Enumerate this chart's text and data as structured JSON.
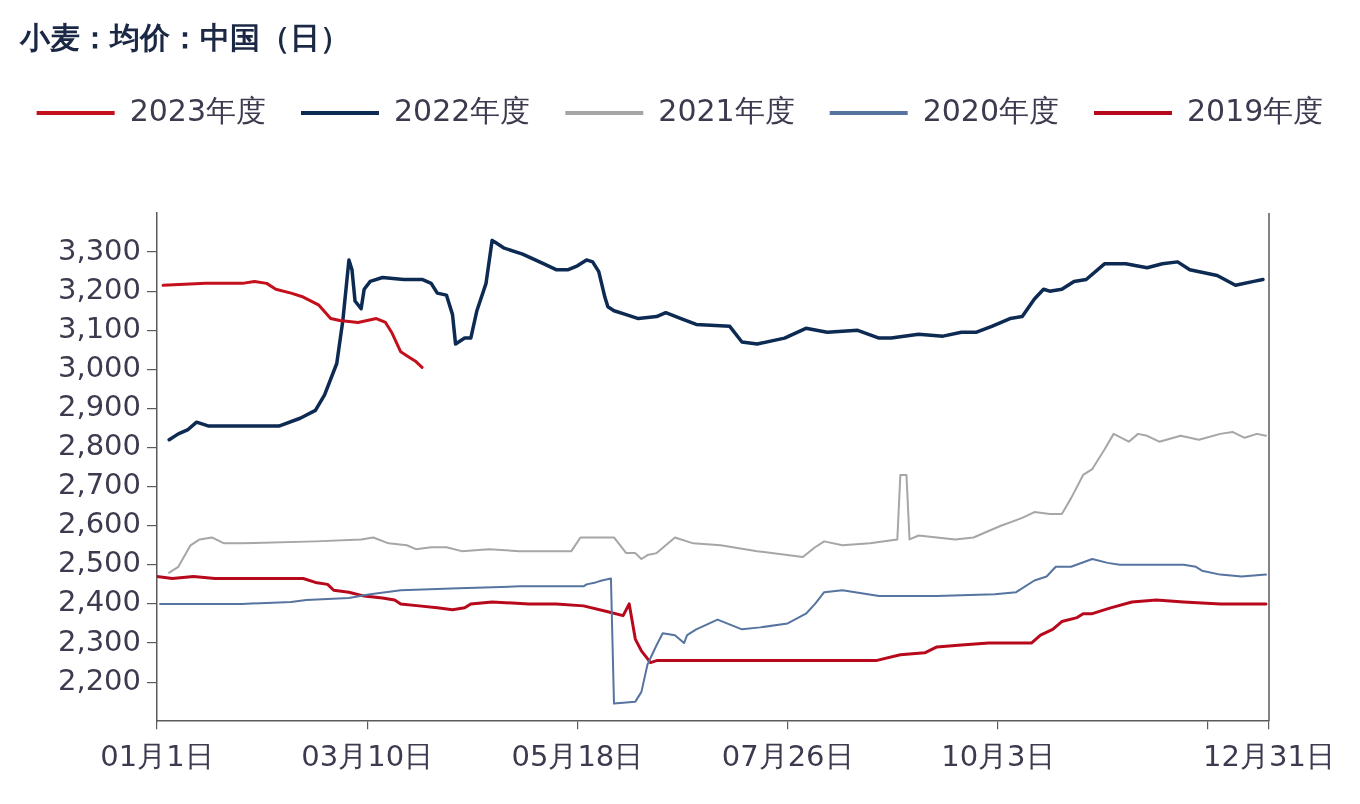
{
  "chart_data": {
    "type": "line",
    "title": "小麦：均价：中国（日）",
    "legend": "top",
    "xlim": [
      "--01-01",
      "--12-31"
    ],
    "xticks": [
      {
        "value": "--01-01",
        "label": "01月1日"
      },
      {
        "value": "--03-10",
        "label": "03月10日"
      },
      {
        "value": "--05-18",
        "label": "05月18日"
      },
      {
        "value": "--07-26",
        "label": "07月26日"
      },
      {
        "value": "--10-03",
        "label": "10月3日"
      },
      {
        "value": "--12-11",
        "label": null
      },
      {
        "value": "--12-31",
        "label": "12月31日"
      }
    ],
    "ylim": [
      2100,
      3400
    ],
    "yticks": [
      {
        "value": 2200,
        "label": "2,200"
      },
      {
        "value": 2300,
        "label": "2,300"
      },
      {
        "value": 2400,
        "label": "2,400"
      },
      {
        "value": 2500,
        "label": "2,500"
      },
      {
        "value": 2600,
        "label": "2,600"
      },
      {
        "value": 2700,
        "label": "2,700"
      },
      {
        "value": 2800,
        "label": "2,800"
      },
      {
        "value": 2900,
        "label": "2,900"
      },
      {
        "value": 3000,
        "label": "3,000"
      },
      {
        "value": 3100,
        "label": "3,100"
      },
      {
        "value": 3200,
        "label": "3,200"
      },
      {
        "value": 3300,
        "label": "3,300"
      }
    ],
    "series": [
      {
        "name": "2023年度",
        "color": "#c4101c",
        "x": [
          "--01-03",
          "--01-17",
          "--01-29",
          "--02-02",
          "--02-06",
          "--02-09",
          "--02-14",
          "--02-18",
          "--02-23",
          "--02-27",
          "--03-01",
          "--03-07",
          "--03-13",
          "--03-16",
          "--03-18",
          "--03-21",
          "--03-24",
          "--03-26",
          "--03-28"
        ],
        "values": [
          3215,
          3220,
          3220,
          3225,
          3220,
          3205,
          3195,
          3185,
          3165,
          3130,
          3125,
          3120,
          3130,
          3120,
          3095,
          3045,
          3030,
          3020,
          3005
        ]
      },
      {
        "name": "2022年度",
        "color": "#0d2a52",
        "x": [
          "--01-05",
          "--01-08",
          "--01-11",
          "--01-14",
          "--01-18",
          "--02-10",
          "--02-17",
          "--02-22",
          "--02-25",
          "--02-29",
          "--03-02",
          "--03-04",
          "--03-05",
          "--03-06",
          "--03-08",
          "--03-09",
          "--03-11",
          "--03-15",
          "--03-22",
          "--03-28",
          "--03-31",
          "--04-02",
          "--04-05",
          "--04-07",
          "--04-08",
          "--04-11",
          "--04-13",
          "--04-15",
          "--04-18",
          "--04-20",
          "--04-21",
          "--04-24",
          "--04-30",
          "--05-07",
          "--05-11",
          "--05-15",
          "--05-18",
          "--05-21",
          "--05-23",
          "--05-25",
          "--05-27",
          "--05-28",
          "--05-30",
          "--06-03",
          "--06-07",
          "--06-13",
          "--06-16",
          "--06-21",
          "--06-26",
          "--07-07",
          "--07-11",
          "--07-16",
          "--07-25",
          "--08-01",
          "--08-08",
          "--08-18",
          "--08-25",
          "--08-29",
          "--09-07",
          "--09-15",
          "--09-21",
          "--09-26",
          "--10-01",
          "--10-07",
          "--10-11",
          "--10-15",
          "--10-18",
          "--10-20",
          "--10-24",
          "--10-28",
          "--11-01",
          "--11-07",
          "--11-14",
          "--11-21",
          "--11-26",
          "--12-01",
          "--12-05",
          "--12-14",
          "--12-20",
          "--12-26",
          "--12-29"
        ],
        "values": [
          2820,
          2835,
          2845,
          2865,
          2855,
          2855,
          2875,
          2895,
          2935,
          3015,
          3125,
          3280,
          3255,
          3175,
          3155,
          3205,
          3225,
          3235,
          3230,
          3230,
          3220,
          3195,
          3190,
          3140,
          3065,
          3080,
          3080,
          3150,
          3220,
          3330,
          3325,
          3310,
          3295,
          3270,
          3255,
          3255,
          3265,
          3280,
          3275,
          3250,
          3185,
          3160,
          3150,
          3140,
          3130,
          3135,
          3145,
          3130,
          3115,
          3110,
          3070,
          3065,
          3080,
          3105,
          3095,
          3100,
          3080,
          3080,
          3090,
          3085,
          3095,
          3095,
          3110,
          3130,
          3135,
          3180,
          3205,
          3200,
          3205,
          3225,
          3230,
          3270,
          3270,
          3260,
          3270,
          3275,
          3255,
          3240,
          3215,
          3225,
          3230
        ]
      },
      {
        "name": "2021年度",
        "color": "#a6a6a6",
        "x": [
          "--01-05",
          "--01-08",
          "--01-12",
          "--01-15",
          "--01-19",
          "--01-23",
          "--01-28",
          "--02-22",
          "--03-08",
          "--03-12",
          "--03-17",
          "--03-23",
          "--03-26",
          "--03-31",
          "--04-05",
          "--04-10",
          "--04-19",
          "--04-29",
          "--05-16",
          "--05-19",
          "--05-30",
          "--06-03",
          "--06-06",
          "--06-08",
          "--06-10",
          "--06-13",
          "--06-16",
          "--06-19",
          "--06-25",
          "--07-04",
          "--07-16",
          "--07-31",
          "--08-04",
          "--08-07",
          "--08-13",
          "--08-22",
          "--08-31",
          "--09-01",
          "--09-03",
          "--09-04",
          "--09-07",
          "--09-13",
          "--09-19",
          "--09-25",
          "--10-04",
          "--10-11",
          "--10-15",
          "--10-20",
          "--10-24",
          "--10-27",
          "--10-31",
          "--11-03",
          "--11-07",
          "--11-10",
          "--11-15",
          "--11-18",
          "--11-21",
          "--11-25",
          "--12-02",
          "--12-08",
          "--12-15",
          "--12-19",
          "--12-23",
          "--12-27",
          "--12-30"
        ],
        "values": [
          2480,
          2495,
          2550,
          2565,
          2570,
          2555,
          2555,
          2560,
          2565,
          2570,
          2555,
          2550,
          2540,
          2545,
          2545,
          2535,
          2540,
          2535,
          2535,
          2570,
          2570,
          2530,
          2530,
          2515,
          2525,
          2530,
          2550,
          2570,
          2555,
          2550,
          2535,
          2520,
          2545,
          2560,
          2550,
          2555,
          2565,
          2730,
          2730,
          2565,
          2575,
          2570,
          2565,
          2570,
          2600,
          2620,
          2635,
          2630,
          2630,
          2670,
          2730,
          2745,
          2795,
          2835,
          2815,
          2835,
          2830,
          2815,
          2830,
          2820,
          2835,
          2840,
          2825,
          2835,
          2830
        ]
      },
      {
        "name": "2020年度",
        "color": "#56749f",
        "x": [
          "--01-02",
          "--01-29",
          "--02-14",
          "--02-19",
          "--03-04",
          "--03-11",
          "--03-21",
          "--04-09",
          "--04-29",
          "--05-20",
          "--05-21",
          "--05-24",
          "--05-26",
          "--05-29",
          "--05-30",
          "--06-06",
          "--06-08",
          "--06-10",
          "--06-13",
          "--06-15",
          "--06-19",
          "--06-22",
          "--06-23",
          "--06-26",
          "--07-03",
          "--07-11",
          "--07-17",
          "--07-26",
          "--08-01",
          "--08-04",
          "--08-07",
          "--08-13",
          "--08-25",
          "--09-01",
          "--09-13",
          "--10-02",
          "--10-09",
          "--10-15",
          "--10-19",
          "--10-22",
          "--10-27",
          "--11-03",
          "--11-08",
          "--11-12",
          "--12-03",
          "--12-07",
          "--12-09",
          "--12-15",
          "--12-22",
          "--12-30"
        ],
        "values": [
          2400,
          2400,
          2405,
          2410,
          2415,
          2425,
          2435,
          2440,
          2445,
          2445,
          2450,
          2455,
          2460,
          2465,
          2145,
          2150,
          2175,
          2245,
          2295,
          2325,
          2320,
          2300,
          2320,
          2335,
          2360,
          2335,
          2340,
          2350,
          2375,
          2400,
          2430,
          2435,
          2420,
          2420,
          2420,
          2425,
          2430,
          2460,
          2470,
          2495,
          2495,
          2515,
          2505,
          2500,
          2500,
          2495,
          2485,
          2475,
          2470,
          2475
        ]
      },
      {
        "name": "2019年度",
        "color": "#b8081c",
        "x": [
          "--01-01",
          "--01-06",
          "--01-13",
          "--01-20",
          "--02-07",
          "--02-18",
          "--02-22",
          "--02-26",
          "--02-28",
          "--03-04",
          "--03-09",
          "--03-15",
          "--03-19",
          "--03-21",
          "--03-27",
          "--04-02",
          "--04-07",
          "--04-11",
          "--04-13",
          "--04-20",
          "--05-02",
          "--05-11",
          "--05-20",
          "--05-28",
          "--06-02",
          "--06-04",
          "--06-05",
          "--06-06",
          "--06-08",
          "--06-11",
          "--06-13",
          "--06-18",
          "--07-14",
          "--08-06",
          "--08-24",
          "--09-01",
          "--09-09",
          "--09-13",
          "--09-21",
          "--09-30",
          "--10-14",
          "--10-17",
          "--10-21",
          "--10-24",
          "--10-29",
          "--10-31",
          "--11-03",
          "--11-09",
          "--11-16",
          "--11-24",
          "--12-03",
          "--12-15",
          "--12-30"
        ],
        "values": [
          2470,
          2465,
          2470,
          2465,
          2465,
          2465,
          2455,
          2450,
          2435,
          2430,
          2420,
          2415,
          2410,
          2400,
          2395,
          2390,
          2385,
          2390,
          2400,
          2405,
          2400,
          2400,
          2395,
          2380,
          2370,
          2400,
          2355,
          2310,
          2280,
          2250,
          2255,
          2255,
          2255,
          2255,
          2255,
          2270,
          2275,
          2290,
          2295,
          2300,
          2300,
          2320,
          2335,
          2355,
          2365,
          2375,
          2375,
          2390,
          2405,
          2410,
          2405,
          2400,
          2400
        ]
      }
    ]
  }
}
